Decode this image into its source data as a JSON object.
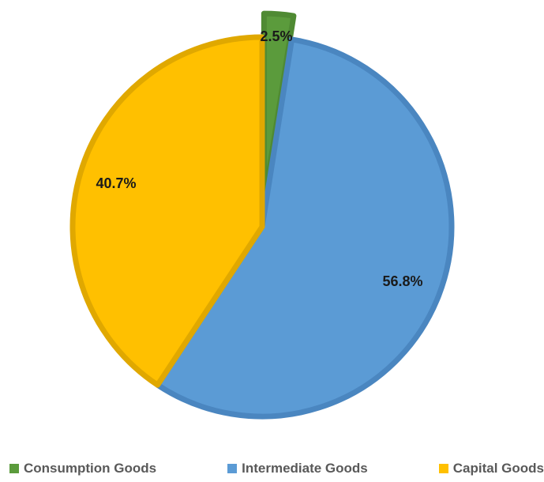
{
  "chart_data": {
    "type": "pie",
    "title": "",
    "categories": [
      "Consumption Goods",
      "Intermediate Goods",
      "Capital Goods"
    ],
    "values": [
      2.5,
      56.8,
      40.7
    ],
    "labels": [
      "2.5%",
      "56.8%",
      "40.7%"
    ],
    "colors": [
      "#5b9b3c",
      "#5b9bd5",
      "#ffc000"
    ],
    "border_colors": [
      "#4f8a33",
      "#4a86c0",
      "#e0a800"
    ],
    "start_angle_deg": 0,
    "direction": "clockwise",
    "exploded": [
      true,
      false,
      false
    ],
    "legend_position": "bottom"
  },
  "legend": {
    "items": [
      {
        "label": "Consumption Goods",
        "color": "#5b9b3c"
      },
      {
        "label": "Intermediate Goods",
        "color": "#5b9bd5"
      },
      {
        "label": "Capital Goods",
        "color": "#ffc000"
      }
    ]
  }
}
